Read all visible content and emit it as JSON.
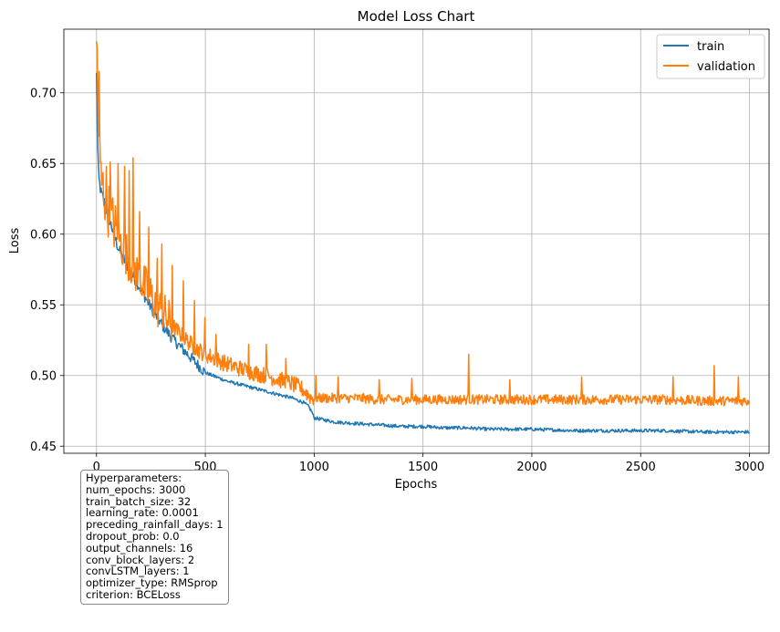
{
  "chart_data": {
    "type": "line",
    "title": "Model Loss Chart",
    "xlabel": "Epochs",
    "ylabel": "Loss",
    "xlim": [
      -150,
      3090
    ],
    "ylim": [
      0.445,
      0.745
    ],
    "xticks": [
      0,
      500,
      1000,
      1500,
      2000,
      2500,
      3000
    ],
    "yticks": [
      0.45,
      0.5,
      0.55,
      0.6,
      0.65,
      0.7
    ],
    "xtick_labels": [
      "0",
      "500",
      "1000",
      "1500",
      "2000",
      "2500",
      "3000"
    ],
    "ytick_labels": [
      "0.45",
      "0.50",
      "0.55",
      "0.60",
      "0.65",
      "0.70"
    ],
    "grid": true,
    "legend_position": "top-right",
    "series": [
      {
        "name": "train",
        "color": "#1f77b4",
        "x": [
          0,
          5,
          10,
          20,
          40,
          60,
          80,
          100,
          150,
          200,
          250,
          300,
          350,
          400,
          450,
          500,
          600,
          700,
          800,
          900,
          950,
          975,
          990,
          1000,
          1100,
          1200,
          1300,
          1400,
          1500,
          1600,
          1700,
          1800,
          1900,
          2000,
          2200,
          2400,
          2600,
          2800,
          3000
        ],
        "y": [
          0.713,
          0.665,
          0.64,
          0.63,
          0.621,
          0.61,
          0.6,
          0.59,
          0.575,
          0.562,
          0.548,
          0.536,
          0.526,
          0.518,
          0.51,
          0.502,
          0.496,
          0.492,
          0.488,
          0.484,
          0.481,
          0.478,
          0.474,
          0.47,
          0.467,
          0.466,
          0.465,
          0.464,
          0.464,
          0.463,
          0.463,
          0.462,
          0.462,
          0.462,
          0.461,
          0.461,
          0.461,
          0.46,
          0.46
        ]
      },
      {
        "name": "validation",
        "color": "#ff7f0e",
        "x": [
          0,
          5,
          10,
          20,
          40,
          60,
          80,
          100,
          150,
          200,
          250,
          300,
          350,
          400,
          450,
          500,
          600,
          700,
          800,
          900,
          950,
          975,
          990,
          1000,
          1100,
          1200,
          1300,
          1400,
          1500,
          1600,
          1700,
          1800,
          1900,
          2000,
          2200,
          2400,
          2600,
          2800,
          3000
        ],
        "y": [
          0.725,
          0.7,
          0.67,
          0.64,
          0.625,
          0.615,
          0.607,
          0.598,
          0.582,
          0.568,
          0.556,
          0.545,
          0.535,
          0.527,
          0.52,
          0.515,
          0.508,
          0.503,
          0.499,
          0.494,
          0.49,
          0.486,
          0.484,
          0.484,
          0.484,
          0.484,
          0.483,
          0.483,
          0.483,
          0.483,
          0.483,
          0.483,
          0.483,
          0.483,
          0.483,
          0.483,
          0.483,
          0.482,
          0.482
        ],
        "spikes": [
          {
            "x": 5,
            "y": 0.732
          },
          {
            "x": 12,
            "y": 0.715
          },
          {
            "x": 45,
            "y": 0.648
          },
          {
            "x": 65,
            "y": 0.651
          },
          {
            "x": 100,
            "y": 0.65
          },
          {
            "x": 130,
            "y": 0.648
          },
          {
            "x": 150,
            "y": 0.645
          },
          {
            "x": 170,
            "y": 0.654
          },
          {
            "x": 200,
            "y": 0.616
          },
          {
            "x": 240,
            "y": 0.605
          },
          {
            "x": 280,
            "y": 0.583
          },
          {
            "x": 300,
            "y": 0.593
          },
          {
            "x": 350,
            "y": 0.578
          },
          {
            "x": 400,
            "y": 0.567
          },
          {
            "x": 450,
            "y": 0.553
          },
          {
            "x": 500,
            "y": 0.541
          },
          {
            "x": 550,
            "y": 0.529
          },
          {
            "x": 700,
            "y": 0.522
          },
          {
            "x": 780,
            "y": 0.522
          },
          {
            "x": 870,
            "y": 0.512
          },
          {
            "x": 1010,
            "y": 0.5
          },
          {
            "x": 1110,
            "y": 0.499
          },
          {
            "x": 1300,
            "y": 0.497
          },
          {
            "x": 1450,
            "y": 0.498
          },
          {
            "x": 1710,
            "y": 0.515
          },
          {
            "x": 1900,
            "y": 0.497
          },
          {
            "x": 2230,
            "y": 0.499
          },
          {
            "x": 2650,
            "y": 0.499
          },
          {
            "x": 2840,
            "y": 0.507
          },
          {
            "x": 2950,
            "y": 0.499
          }
        ]
      }
    ]
  },
  "hyperparameters": {
    "heading": "Hyperparameters:",
    "lines": [
      "num_epochs: 3000",
      "train_batch_size: 32",
      "learning_rate: 0.0001",
      "preceding_rainfall_days: 1",
      "dropout_prob: 0.0",
      "output_channels: 16",
      "conv_block_layers: 2",
      "convLSTM_layers: 1",
      "optimizer_type: RMSprop",
      "criterion: BCELoss"
    ]
  }
}
